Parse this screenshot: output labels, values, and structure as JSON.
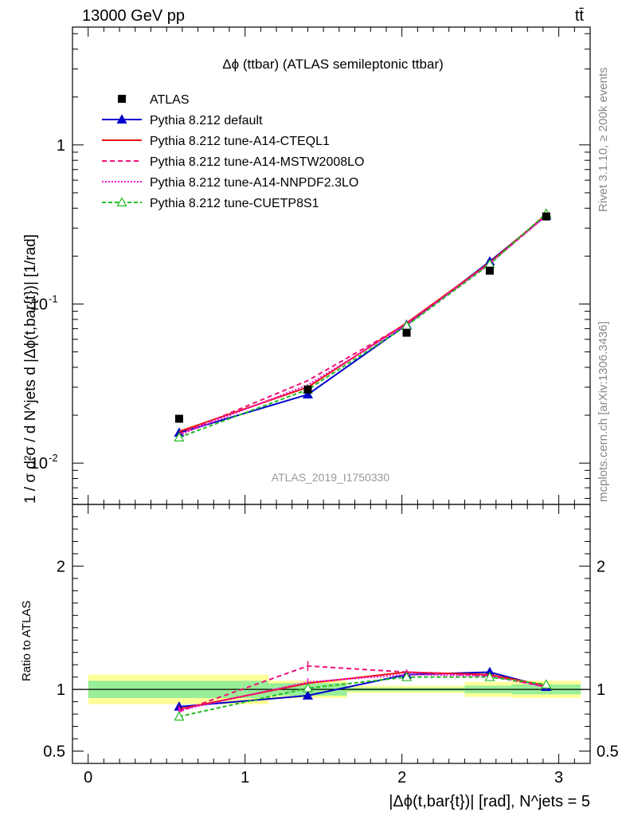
{
  "header": {
    "left": "13000 GeV pp",
    "right": "tt̄"
  },
  "side": {
    "top": "Rivet 3.1.10, ≥ 200k events",
    "bottom": "mcplots.cern.ch [arXiv:1306.3436]"
  },
  "watermark": "ATLAS_2019_I1750330",
  "chart_data": {
    "type": "line",
    "title": "Δϕ (ttbar) (ATLAS semileptonic ttbar)",
    "xlabel": "|Δϕ(t,bar{t})| [rad], N^jets = 5",
    "ylabel": "1 / σ d²σ / d N^jets d |Δϕ(t,bar{t})| [1/rad]",
    "ratio_ylabel": "Ratio to ATLAS",
    "xlim": [
      -0.1,
      3.2
    ],
    "ylim": [
      0.0055,
      5.5
    ],
    "yscale": "log",
    "ratio_ylim": [
      0.4,
      2.5
    ],
    "xticks": [
      {
        "v": 0,
        "label": "0"
      },
      {
        "v": 1,
        "label": "1"
      },
      {
        "v": 2,
        "label": "2"
      },
      {
        "v": 3,
        "label": "3"
      }
    ],
    "yticks_main": [
      {
        "v": 0.01,
        "label": "10",
        "exp": "-2"
      },
      {
        "v": 0.1,
        "label": "10",
        "exp": "-1"
      },
      {
        "v": 1,
        "label": "1",
        "exp": ""
      }
    ],
    "yticks_ratio": [
      {
        "v": 0.5,
        "label": "0.5"
      },
      {
        "v": 1,
        "label": "1"
      },
      {
        "v": 2,
        "label": "2"
      }
    ],
    "bin_edges": [
      0,
      1.15,
      1.65,
      2.4,
      2.7,
      3.14
    ],
    "band_inner": [
      0.07,
      0.05,
      0.015,
      0.03,
      0.04
    ],
    "band_outer": [
      0.12,
      0.07,
      0.03,
      0.06,
      0.07
    ],
    "x": [
      0.58,
      1.4,
      2.03,
      2.56,
      2.92
    ],
    "data": {
      "name": "ATLAS",
      "values": [
        0.019,
        0.029,
        0.066,
        0.162,
        0.355
      ]
    },
    "series": [
      {
        "name": "Pythia 8.212 default",
        "color": "#0000cc",
        "dash": "",
        "marker": "tri",
        "values": [
          0.0155,
          0.027,
          0.074,
          0.185,
          0.36
        ],
        "ratio": [
          0.86,
          0.95,
          1.12,
          1.14,
          1.02
        ],
        "err": [
          0.03,
          0.03,
          0.02,
          0.02,
          0.02
        ]
      },
      {
        "name": "Pythia 8.212 tune-A14-CTEQL1",
        "color": "#ee1111",
        "dash": "",
        "marker": "",
        "values": [
          0.0158,
          0.03,
          0.076,
          0.182,
          0.365
        ],
        "ratio": [
          0.84,
          1.05,
          1.14,
          1.12,
          1.03
        ],
        "err": [
          0.03,
          0.03,
          0.02,
          0.02,
          0.02
        ]
      },
      {
        "name": "Pythia 8.212 tune-A14-MSTW2008LO",
        "color": "#ee1177",
        "dash": "6,4",
        "marker": "",
        "values": [
          0.0152,
          0.033,
          0.075,
          0.18,
          0.36
        ],
        "ratio": [
          0.82,
          1.19,
          1.14,
          1.11,
          1.02
        ],
        "err": [
          0.03,
          0.04,
          0.02,
          0.02,
          0.02
        ]
      },
      {
        "name": "Pythia 8.212 tune-A14-NNPDF2.3LO",
        "color": "#ee11dd",
        "dash": "2,2",
        "marker": "",
        "values": [
          0.015,
          0.031,
          0.074,
          0.18,
          0.36
        ],
        "ratio": [
          0.83,
          1.06,
          1.12,
          1.11,
          1.02
        ],
        "err": [
          0.03,
          0.03,
          0.02,
          0.02,
          0.02
        ]
      },
      {
        "name": "Pythia 8.212 tune-CUETP8S1",
        "color": "#22bb22",
        "dash": "5,3",
        "marker": "otri",
        "values": [
          0.0145,
          0.029,
          0.073,
          0.178,
          0.37
        ],
        "ratio": [
          0.78,
          1.01,
          1.1,
          1.1,
          1.04
        ],
        "err": [
          0.03,
          0.03,
          0.02,
          0.02,
          0.02
        ]
      }
    ]
  }
}
